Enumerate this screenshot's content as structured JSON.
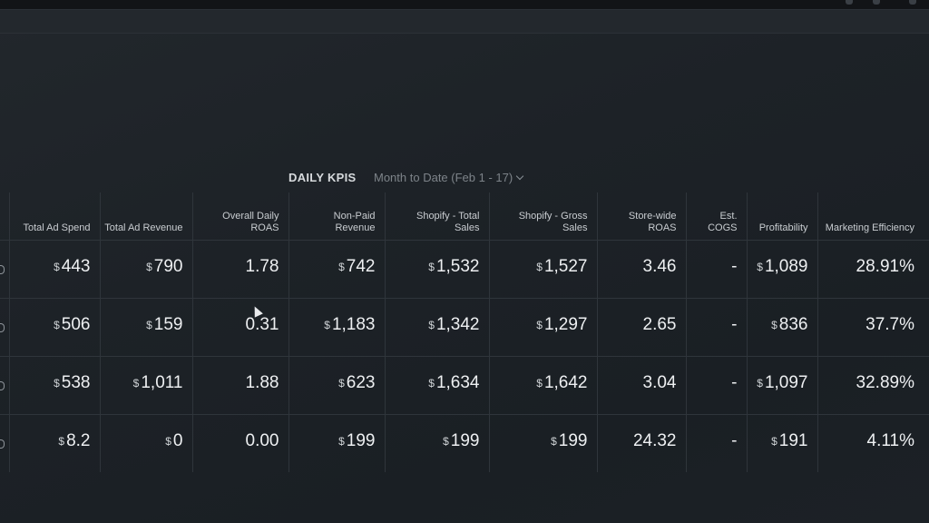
{
  "panel": {
    "title": "DAILY KPIS",
    "date_range": "Month to Date (Feb 1 - 17)"
  },
  "columns": [
    {
      "label": "Total Ad Spend"
    },
    {
      "label": "Total Ad Revenue"
    },
    {
      "label": "Overall Daily ROAS"
    },
    {
      "label": "Non-Paid Revenue"
    },
    {
      "label": "Shopify - Total Sales"
    },
    {
      "label": "Shopify - Gross Sales"
    },
    {
      "label": "Store-wide ROAS"
    },
    {
      "label": "Est. COGS"
    },
    {
      "label": "Profitability"
    },
    {
      "label": "Marketing Efficiency"
    }
  ],
  "currency_symbol": "$",
  "rows": [
    {
      "total_ad_spend": "443",
      "total_ad_revenue": "790",
      "overall_daily_roas": "1.78",
      "non_paid_revenue": "742",
      "shopify_total_sales": "1,532",
      "shopify_gross_sales": "1,527",
      "store_wide_roas": "3.46",
      "est_cogs": "-",
      "profitability": "1,089",
      "marketing_efficiency": "28.91%"
    },
    {
      "total_ad_spend": "506",
      "total_ad_revenue": "159",
      "overall_daily_roas": "0.31",
      "non_paid_revenue": "1,183",
      "shopify_total_sales": "1,342",
      "shopify_gross_sales": "1,297",
      "store_wide_roas": "2.65",
      "est_cogs": "-",
      "profitability": "836",
      "marketing_efficiency": "37.7%"
    },
    {
      "total_ad_spend": "538",
      "total_ad_revenue": "1,011",
      "overall_daily_roas": "1.88",
      "non_paid_revenue": "623",
      "shopify_total_sales": "1,634",
      "shopify_gross_sales": "1,642",
      "store_wide_roas": "3.04",
      "est_cogs": "-",
      "profitability": "1,097",
      "marketing_efficiency": "32.89%"
    },
    {
      "total_ad_spend": "8.2",
      "total_ad_revenue": "0",
      "overall_daily_roas": "0.00",
      "non_paid_revenue": "199",
      "shopify_total_sales": "199",
      "shopify_gross_sales": "199",
      "store_wide_roas": "24.32",
      "est_cogs": "-",
      "profitability": "191",
      "marketing_efficiency": "4.11%"
    }
  ],
  "colors": {
    "background": "#1c2126",
    "grid_line": "#2f353b",
    "text": "#eef0f2",
    "muted": "#7d8389"
  },
  "icons": {
    "date_dropdown": "chevron-down-icon",
    "cursor": "mouse-pointer-icon"
  }
}
